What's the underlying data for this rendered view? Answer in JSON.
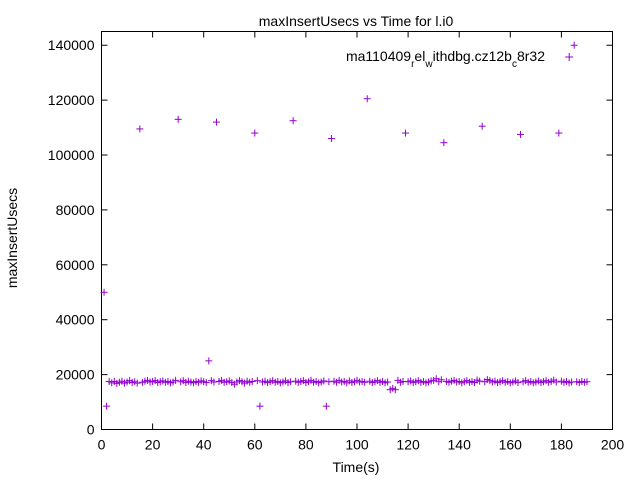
{
  "chart_data": {
    "type": "scatter",
    "title": "maxInsertUsecs vs Time for l.i0",
    "xlabel": "Time(s)",
    "ylabel": "maxInsertUsecs",
    "xlim": [
      0,
      200
    ],
    "ylim": [
      0,
      145000
    ],
    "xticks": [
      0,
      20,
      40,
      60,
      80,
      100,
      120,
      140,
      160,
      180,
      200
    ],
    "yticks": [
      0,
      20000,
      40000,
      60000,
      80000,
      100000,
      120000,
      140000
    ],
    "x_tick_labels": [
      "0",
      "20",
      "40",
      "60",
      "80",
      "100",
      "120",
      "140",
      "160",
      "180",
      "200"
    ],
    "y_tick_labels": [
      "0",
      "20000",
      "40000",
      "60000",
      "80000",
      "100000",
      "120000",
      "140000"
    ],
    "grid": false,
    "legend_position": "top-right",
    "legend": {
      "parts": [
        {
          "text": "ma110409",
          "shift": "none"
        },
        {
          "text": "r",
          "shift": "sub"
        },
        {
          "text": "el",
          "shift": "sup"
        },
        {
          "text": "w",
          "shift": "sub"
        },
        {
          "text": "ithdbg.cz12b",
          "shift": "sup"
        },
        {
          "text": "c",
          "shift": "sub"
        },
        {
          "text": "8r32",
          "shift": "sup"
        }
      ]
    },
    "series": [
      {
        "color": "#9400d3",
        "marker": "plus",
        "points": [
          [
            1,
            50000
          ],
          [
            2,
            8500
          ],
          [
            3,
            17500
          ],
          [
            4,
            17000
          ],
          [
            5,
            17500
          ],
          [
            6,
            16800
          ],
          [
            7,
            17200
          ],
          [
            8,
            17600
          ],
          [
            9,
            16900
          ],
          [
            10,
            17300
          ],
          [
            11,
            17800
          ],
          [
            12,
            17100
          ],
          [
            13,
            17400
          ],
          [
            14,
            16900
          ],
          [
            15,
            109500
          ],
          [
            16,
            17200
          ],
          [
            17,
            17600
          ],
          [
            18,
            17900
          ],
          [
            19,
            17300
          ],
          [
            20,
            17500
          ],
          [
            21,
            17800
          ],
          [
            22,
            17100
          ],
          [
            23,
            17400
          ],
          [
            24,
            17700
          ],
          [
            25,
            17200
          ],
          [
            26,
            17500
          ],
          [
            27,
            17000
          ],
          [
            28,
            17300
          ],
          [
            29,
            17900
          ],
          [
            30,
            113000
          ],
          [
            31,
            17400
          ],
          [
            32,
            17800
          ],
          [
            33,
            17100
          ],
          [
            34,
            17600
          ],
          [
            35,
            17300
          ],
          [
            36,
            17000
          ],
          [
            37,
            17500
          ],
          [
            38,
            17200
          ],
          [
            39,
            17700
          ],
          [
            40,
            17400
          ],
          [
            41,
            17100
          ],
          [
            42,
            25000
          ],
          [
            43,
            17800
          ],
          [
            44,
            17300
          ],
          [
            45,
            112000
          ],
          [
            46,
            17500
          ],
          [
            47,
            17900
          ],
          [
            48,
            17200
          ],
          [
            49,
            17400
          ],
          [
            50,
            17700
          ],
          [
            51,
            17100
          ],
          [
            52,
            16500
          ],
          [
            53,
            17300
          ],
          [
            54,
            17800
          ],
          [
            55,
            17400
          ],
          [
            56,
            16900
          ],
          [
            57,
            17600
          ],
          [
            58,
            17200
          ],
          [
            59,
            17500
          ],
          [
            60,
            108000
          ],
          [
            61,
            17800
          ],
          [
            62,
            8500
          ],
          [
            63,
            17300
          ],
          [
            64,
            17600
          ],
          [
            65,
            17100
          ],
          [
            66,
            17400
          ],
          [
            67,
            17800
          ],
          [
            68,
            17200
          ],
          [
            69,
            17500
          ],
          [
            70,
            17000
          ],
          [
            71,
            17300
          ],
          [
            72,
            17700
          ],
          [
            73,
            17100
          ],
          [
            74,
            17400
          ],
          [
            75,
            112500
          ],
          [
            76,
            17600
          ],
          [
            77,
            17200
          ],
          [
            78,
            17500
          ],
          [
            79,
            17800
          ],
          [
            80,
            17100
          ],
          [
            81,
            17400
          ],
          [
            82,
            17900
          ],
          [
            83,
            17200
          ],
          [
            84,
            17500
          ],
          [
            85,
            17000
          ],
          [
            86,
            17300
          ],
          [
            87,
            17700
          ],
          [
            88,
            8500
          ],
          [
            89,
            17400
          ],
          [
            90,
            106000
          ],
          [
            91,
            17600
          ],
          [
            92,
            17200
          ],
          [
            93,
            17900
          ],
          [
            94,
            17300
          ],
          [
            95,
            17500
          ],
          [
            96,
            17000
          ],
          [
            97,
            17700
          ],
          [
            98,
            17100
          ],
          [
            99,
            17400
          ],
          [
            100,
            17900
          ],
          [
            101,
            17300
          ],
          [
            102,
            17500
          ],
          [
            103,
            17200
          ],
          [
            104,
            120500
          ],
          [
            105,
            17600
          ],
          [
            106,
            17100
          ],
          [
            107,
            17400
          ],
          [
            108,
            17800
          ],
          [
            109,
            17200
          ],
          [
            110,
            17500
          ],
          [
            111,
            17000
          ],
          [
            112,
            17300
          ],
          [
            113,
            14500
          ],
          [
            114,
            15000
          ],
          [
            115,
            14500
          ],
          [
            116,
            17900
          ],
          [
            117,
            17200
          ],
          [
            118,
            17500
          ],
          [
            119,
            108000
          ],
          [
            120,
            17400
          ],
          [
            121,
            17700
          ],
          [
            122,
            17100
          ],
          [
            123,
            17400
          ],
          [
            124,
            17800
          ],
          [
            125,
            17200
          ],
          [
            126,
            17500
          ],
          [
            127,
            17000
          ],
          [
            128,
            17300
          ],
          [
            129,
            17700
          ],
          [
            130,
            17900
          ],
          [
            131,
            18500
          ],
          [
            132,
            17400
          ],
          [
            133,
            18100
          ],
          [
            134,
            104500
          ],
          [
            135,
            17500
          ],
          [
            136,
            17200
          ],
          [
            137,
            17600
          ],
          [
            138,
            17900
          ],
          [
            139,
            17300
          ],
          [
            140,
            17500
          ],
          [
            141,
            17000
          ],
          [
            142,
            17400
          ],
          [
            143,
            17800
          ],
          [
            144,
            17200
          ],
          [
            145,
            17500
          ],
          [
            146,
            17100
          ],
          [
            147,
            18000
          ],
          [
            148,
            17600
          ],
          [
            149,
            110500
          ],
          [
            150,
            17400
          ],
          [
            151,
            18200
          ],
          [
            152,
            17800
          ],
          [
            153,
            17300
          ],
          [
            154,
            17600
          ],
          [
            155,
            17100
          ],
          [
            156,
            17400
          ],
          [
            157,
            17800
          ],
          [
            158,
            17200
          ],
          [
            159,
            17500
          ],
          [
            160,
            17000
          ],
          [
            161,
            17300
          ],
          [
            162,
            17700
          ],
          [
            163,
            17100
          ],
          [
            164,
            107500
          ],
          [
            165,
            17400
          ],
          [
            166,
            17800
          ],
          [
            167,
            17200
          ],
          [
            168,
            17500
          ],
          [
            169,
            17000
          ],
          [
            170,
            17300
          ],
          [
            171,
            17700
          ],
          [
            172,
            17100
          ],
          [
            173,
            17400
          ],
          [
            174,
            17800
          ],
          [
            175,
            17200
          ],
          [
            176,
            17500
          ],
          [
            177,
            18000
          ],
          [
            178,
            17300
          ],
          [
            179,
            108000
          ],
          [
            180,
            17600
          ],
          [
            181,
            17200
          ],
          [
            182,
            17500
          ],
          [
            183,
            17000
          ],
          [
            184,
            17300
          ],
          [
            185,
            140000
          ],
          [
            186,
            17400
          ],
          [
            187,
            17100
          ],
          [
            188,
            17500
          ],
          [
            189,
            17200
          ],
          [
            190,
            17400
          ]
        ]
      }
    ]
  }
}
